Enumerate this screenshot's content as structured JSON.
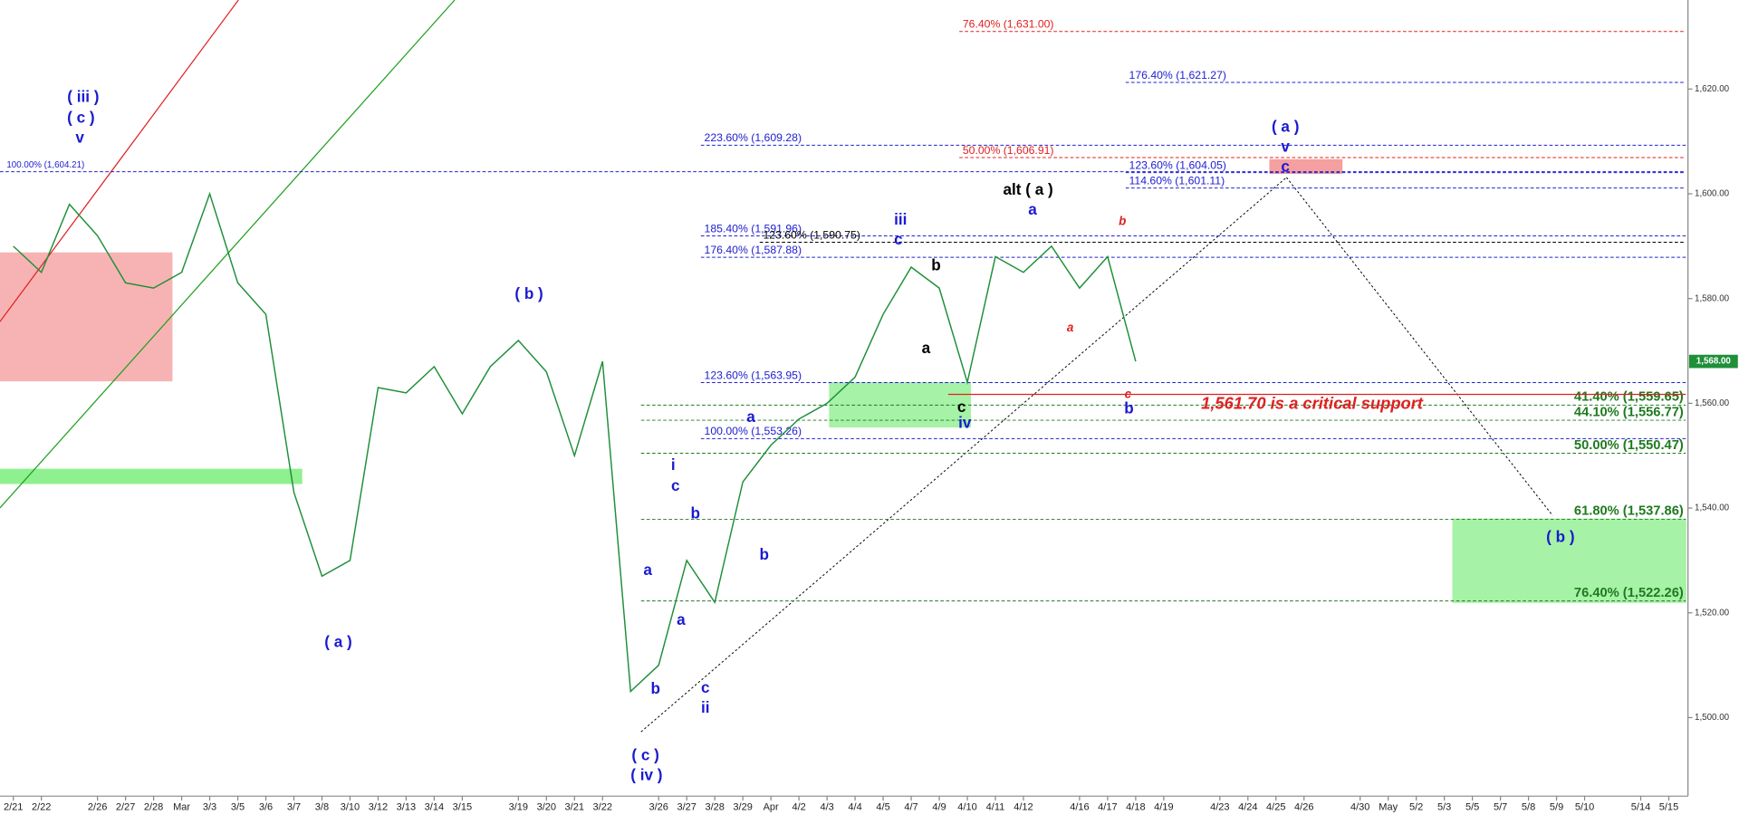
{
  "chart_data": {
    "type": "line",
    "categories": [
      "2/21",
      "2/22",
      null,
      "2/26",
      "2/27",
      "2/28",
      "Mar",
      "3/3",
      "3/5",
      "3/6",
      "3/7",
      "3/8",
      "3/10",
      "3/12",
      "3/13",
      "3/14",
      "3/15",
      null,
      "3/19",
      "3/20",
      "3/21",
      "3/22",
      null,
      "3/26",
      "3/27",
      "3/28",
      "3/29",
      "Apr",
      "4/2",
      "4/3",
      "4/4",
      "4/5",
      "4/7",
      "4/9",
      "4/10",
      "4/11",
      "4/12",
      null,
      "4/16",
      "4/17",
      "4/18",
      "4/19",
      null,
      "4/23",
      "4/24",
      "4/25",
      "4/26",
      null,
      "4/30",
      "May",
      "5/2",
      "5/3",
      "5/5",
      "5/7",
      "5/8",
      "5/9",
      "5/10",
      null,
      "5/14",
      "5/15"
    ],
    "series": [
      {
        "color": "#1f8f3a",
        "values": [
          1590,
          1585,
          1598,
          1592,
          1583,
          1582,
          1585,
          1600,
          1583,
          1577,
          1543,
          1527,
          1530,
          1563,
          1562,
          1567,
          1558,
          1567,
          1572,
          1566,
          1550,
          1568,
          1505,
          1510,
          1530,
          1522,
          1545,
          1552,
          1557,
          1560,
          1565,
          1577,
          1586,
          1582,
          1564,
          1588,
          1585,
          1590,
          1582,
          1588,
          1568,
          null,
          null,
          null,
          null,
          null,
          null,
          null,
          null,
          null,
          null,
          null,
          null,
          null,
          null,
          null,
          null,
          null,
          null,
          null
        ]
      }
    ],
    "ylim": [
      1485,
      1637
    ],
    "yticks": [
      {
        "value": 1500,
        "label": "1,500.00"
      },
      {
        "value": 1520,
        "label": "1,520.00"
      },
      {
        "value": 1540,
        "label": "1,540.00"
      },
      {
        "value": 1560,
        "label": "1,560.00"
      },
      {
        "value": 1580,
        "label": "1,580.00"
      },
      {
        "value": 1600,
        "label": "1,600.00"
      },
      {
        "value": 1620,
        "label": "1,620.00"
      }
    ],
    "last_price": {
      "value": 1568,
      "label": "1,568.00",
      "color": "#1f8f3a"
    },
    "levels": [
      {
        "value": 1631.0,
        "label": "76.40% (1,631.00)",
        "color": "#e02020"
      },
      {
        "value": 1621.27,
        "label": "176.40% (1,621.27)",
        "color": "#2020d0"
      },
      {
        "value": 1609.28,
        "label": "223.60% (1,609.28)",
        "color": "#2020d0"
      },
      {
        "value": 1606.91,
        "label": "50.00% (1,606.91)",
        "color": "#e02020"
      },
      {
        "value": 1604.05,
        "label": "123.60% (1,604.05)",
        "color": "#2020d0"
      },
      {
        "value": 1604.21,
        "label": "100.00% (1,604.21)",
        "color": "#2020d0"
      },
      {
        "value": 1601.11,
        "label": "114.60% (1,601.11)",
        "color": "#2020d0"
      },
      {
        "value": 1591.96,
        "label": "185.40% (1,591.96)",
        "color": "#2020d0"
      },
      {
        "value": 1590.75,
        "label": "123.60% (1,590.75)",
        "color": "#000000"
      },
      {
        "value": 1587.88,
        "label": "176.40% (1,587.88)",
        "color": "#2020d0"
      },
      {
        "value": 1563.95,
        "label": "123.60% (1,563.95)",
        "color": "#2020d0"
      },
      {
        "value": 1559.65,
        "label": "41.40% (1,559.65)",
        "color": "#1f7a1f"
      },
      {
        "value": 1556.77,
        "label": "44.10% (1,556.77)",
        "color": "#1f7a1f"
      },
      {
        "value": 1553.26,
        "label": "100.00% (1,553.26)",
        "color": "#2020d0"
      },
      {
        "value": 1550.47,
        "label": "50.00% (1,550.47)",
        "color": "#1f7a1f"
      },
      {
        "value": 1537.86,
        "label": "61.80% (1,537.86)",
        "color": "#1f7a1f"
      },
      {
        "value": 1522.26,
        "label": "76.40% (1,522.26)",
        "color": "#1f7a1f"
      }
    ],
    "support": {
      "value": 1561.7,
      "label": "1,561.70 is a critical support",
      "color": "#e02020"
    },
    "zones": [
      {
        "range": [
          1564.3,
          1588.7
        ],
        "color": "#f7b3b3"
      },
      {
        "range": [
          1544.7,
          1547.4
        ],
        "color": "#8ef08e"
      },
      {
        "range": [
          1555.5,
          1563.9
        ],
        "color": "#a6f2a6"
      },
      {
        "range": [
          1603.9,
          1606.5
        ],
        "color": "#f4a0a0"
      },
      {
        "range": [
          1522.0,
          1537.9
        ],
        "color": "#a6f2a6"
      }
    ],
    "annotations": [
      {
        "text": "( iii )",
        "color": "#1a1ad0"
      },
      {
        "text": "( c )",
        "color": "#1a1ad0"
      },
      {
        "text": "v",
        "color": "#1a1ad0"
      },
      {
        "text": "( b )",
        "color": "#1a1ad0"
      },
      {
        "text": "( a )",
        "color": "#1a1ad0"
      },
      {
        "text": "( c )",
        "color": "#1a1ad0"
      },
      {
        "text": "( iv )",
        "color": "#1a1ad0"
      },
      {
        "text": "a",
        "color": "#1a1ad0"
      },
      {
        "text": "b",
        "color": "#1a1ad0"
      },
      {
        "text": "i",
        "color": "#1a1ad0"
      },
      {
        "text": "c",
        "color": "#1a1ad0"
      },
      {
        "text": "b",
        "color": "#1a1ad0"
      },
      {
        "text": "a",
        "color": "#1a1ad0"
      },
      {
        "text": "c",
        "color": "#1a1ad0"
      },
      {
        "text": "ii",
        "color": "#1a1ad0"
      },
      {
        "text": "a",
        "color": "#1a1ad0"
      },
      {
        "text": "b",
        "color": "#1a1ad0"
      },
      {
        "text": "iii",
        "color": "#1a1ad0"
      },
      {
        "text": "c",
        "color": "#1a1ad0"
      },
      {
        "text": "b",
        "color": "#000000"
      },
      {
        "text": "a",
        "color": "#000000"
      },
      {
        "text": "c",
        "color": "#000000"
      },
      {
        "text": "iv",
        "color": "#1a1ad0"
      },
      {
        "text": "alt ( a )",
        "color": "#000000"
      },
      {
        "text": "a",
        "color": "#1a1ad0"
      },
      {
        "text": "a",
        "color": "#e02020"
      },
      {
        "text": "b",
        "color": "#e02020"
      },
      {
        "text": "c",
        "color": "#e02020"
      },
      {
        "text": "b",
        "color": "#1a1ad0"
      },
      {
        "text": "( a )",
        "color": "#1a1ad0"
      },
      {
        "text": "v",
        "color": "#1a1ad0"
      },
      {
        "text": "c",
        "color": "#1a1ad0"
      },
      {
        "text": "( b )",
        "color": "#1a1ad0"
      }
    ]
  }
}
